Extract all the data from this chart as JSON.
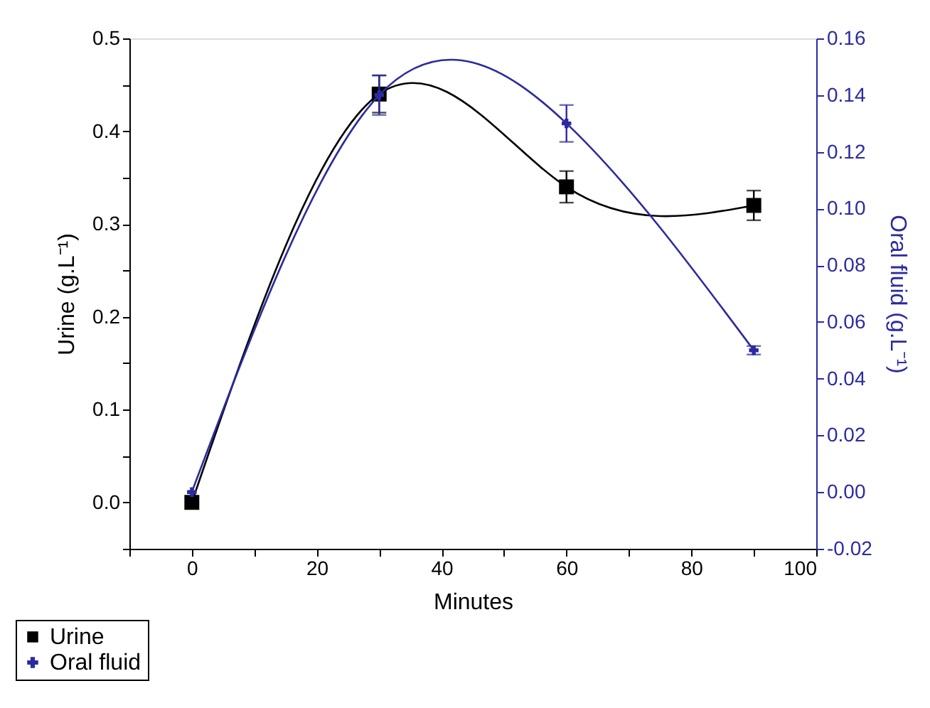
{
  "chart_data": {
    "type": "line",
    "xlabel": "Minutes",
    "ylabel": "Urine (g.L⁻¹)",
    "y2label": "Oral fluid  (g.L⁻¹)",
    "x": [
      0,
      30,
      60,
      90
    ],
    "series": [
      {
        "name": "Urine",
        "color": "#000000",
        "marker": "square",
        "values": [
          0,
          0.44,
          0.34,
          0.32
        ],
        "errors": [
          null,
          0.02,
          0.017,
          0.016
        ]
      },
      {
        "name": "Oral fluid",
        "color": "#2b2ba0",
        "marker": "cross",
        "axis": "y2",
        "values": [
          0,
          0.14,
          0.13,
          0.05
        ],
        "errors": [
          null,
          0.007,
          0.0065,
          0.0015
        ]
      }
    ],
    "xlim": [
      -10,
      100
    ],
    "xticks": [
      {
        "value": -10,
        "label": null
      },
      0,
      {
        "value": 10,
        "label": null
      },
      20,
      {
        "value": 30,
        "label": null
      },
      40,
      {
        "value": 50,
        "label": null
      },
      60,
      {
        "value": 70,
        "label": null
      },
      80,
      {
        "value": 90,
        "label": null
      },
      100
    ],
    "ylim": [
      -0.05,
      0.5
    ],
    "yticks": [
      {
        "value": -0.05,
        "label": null
      },
      {
        "value": 0,
        "label": "0.0"
      },
      {
        "value": 0.05,
        "label": null
      },
      0.1,
      {
        "value": 0.15,
        "label": null
      },
      0.2,
      {
        "value": 0.25,
        "label": null
      },
      0.3,
      {
        "value": 0.35,
        "label": null
      },
      0.4,
      {
        "value": 0.45,
        "label": null
      },
      0.5
    ],
    "y2lim": [
      -0.02,
      0.16
    ],
    "y2ticks": [
      {
        "value": -0.02,
        "label": "-0.02"
      },
      {
        "value": 0,
        "label": "0.00"
      },
      {
        "value": 0.02,
        "label": "0.02"
      },
      {
        "value": 0.04,
        "label": "0.04"
      },
      {
        "value": 0.06,
        "label": "0.06"
      },
      {
        "value": 0.08,
        "label": "0.08"
      },
      {
        "value": 0.1,
        "label": "0.10"
      },
      {
        "value": 0.12,
        "label": "0.12"
      },
      {
        "value": 0.14,
        "label": "0.14"
      },
      {
        "value": 0.16,
        "label": "0.16"
      }
    ],
    "grid": false,
    "legend": "bottom left"
  }
}
